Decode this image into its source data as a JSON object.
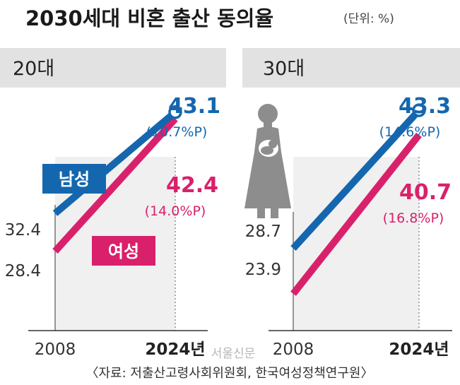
{
  "colors": {
    "male": "#1467ae",
    "female": "#d9216b",
    "panel_bg": "#f0f0f0",
    "label_bg": "#e2e2e2",
    "icon": "#8d8d8d"
  },
  "header": {
    "title": "2030세대 비혼 출산 동의율",
    "unit": "(단위: %)"
  },
  "legend": {
    "male": "남성",
    "female": "여성"
  },
  "footer": {
    "source": "〈자료: 저출산고령사회위원회, 한국여성정책연구원〉",
    "watermark": "서울신문"
  },
  "icons": {
    "figure": "mother-holding-baby-icon"
  },
  "chart_data": [
    {
      "type": "line",
      "panel_label": "20대",
      "x": [
        "2008",
        "2024년"
      ],
      "ylim": [
        20,
        46
      ],
      "series": [
        {
          "name": "남성",
          "values": [
            32.4,
            43.1
          ],
          "start_label": "32.4",
          "end_label": "43.1",
          "change_label": "(10.7%P)"
        },
        {
          "name": "여성",
          "values": [
            28.4,
            42.4
          ],
          "start_label": "28.4",
          "end_label": "42.4",
          "change_label": "(14.0%P)"
        }
      ]
    },
    {
      "type": "line",
      "panel_label": "30대",
      "x": [
        "2008",
        "2024년"
      ],
      "ylim": [
        20,
        46
      ],
      "series": [
        {
          "name": "남성",
          "values": [
            28.7,
            43.3
          ],
          "start_label": "28.7",
          "end_label": "43.3",
          "change_label": "(14.6%P)"
        },
        {
          "name": "여성",
          "values": [
            23.9,
            40.7
          ],
          "start_label": "23.9",
          "end_label": "40.7",
          "change_label": "(16.8%P)"
        }
      ]
    }
  ]
}
